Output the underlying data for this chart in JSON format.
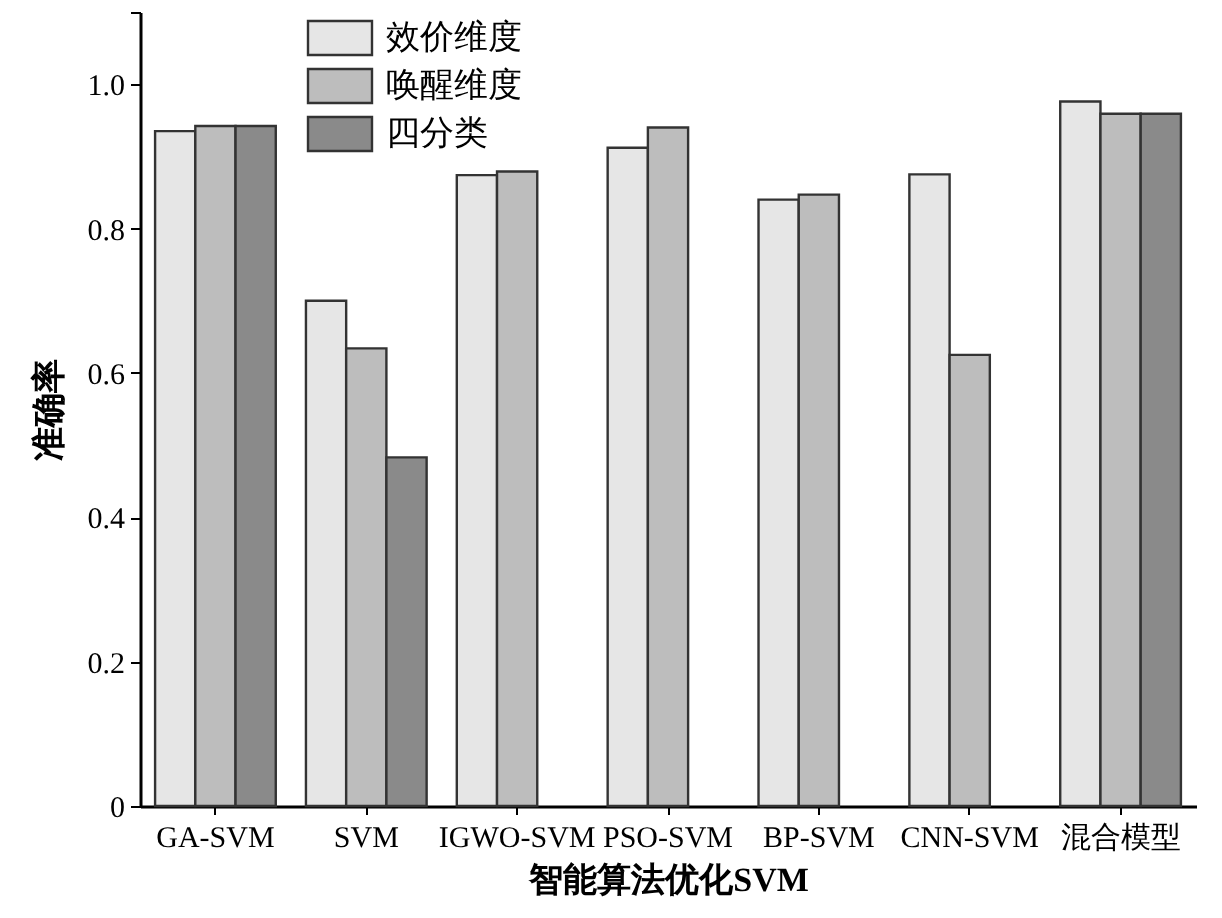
{
  "chart_data": {
    "type": "bar",
    "xlabel": "智能算法优化SVM",
    "ylabel": "准确率",
    "categories": [
      "GA-SVM",
      "SVM",
      "IGWO-SVM",
      "PSO-SVM",
      "BP-SVM",
      "CNN-SVM",
      "混合模型"
    ],
    "series": [
      {
        "name": "效价维度",
        "color": "#e6e6e6",
        "values": [
          0.935,
          0.7,
          0.874,
          0.912,
          0.84,
          0.875,
          0.976
        ]
      },
      {
        "name": "唤醒维度",
        "color": "#bdbdbd",
        "values": [
          0.942,
          0.634,
          0.879,
          0.94,
          0.847,
          0.625,
          0.959
        ]
      },
      {
        "name": "四分类",
        "color": "#8a8a8a",
        "values": [
          0.942,
          0.483,
          null,
          null,
          null,
          null,
          0.959
        ]
      }
    ],
    "ylim": [
      0,
      1.1
    ],
    "yticks": [
      0,
      0.2,
      0.4,
      0.6,
      0.8,
      {
        "value": 1.0,
        "label": "1.0"
      },
      {
        "value": 1.1,
        "label": null
      }
    ],
    "legend": "top left"
  }
}
